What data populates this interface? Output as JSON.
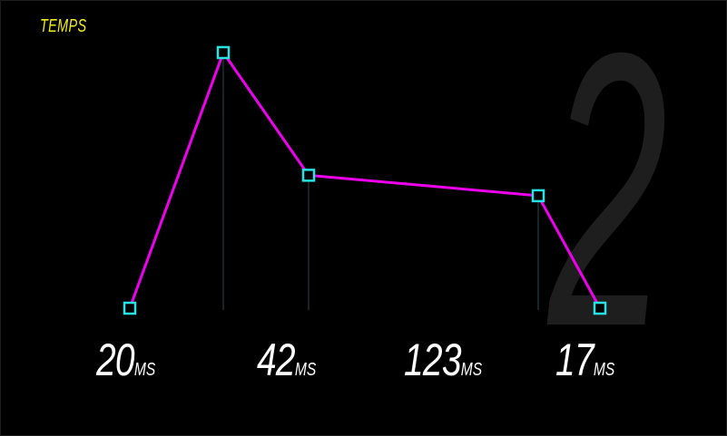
{
  "title": "TEMPS",
  "badge_number": "2",
  "colors": {
    "background": "#000000",
    "title": "#f3ee1b",
    "line": "#ee00ee",
    "marker": "#27e3e3",
    "guide": "#2a4a4a",
    "label": "#ffffff",
    "watermark": "#1e1e1e"
  },
  "chart_data": {
    "type": "line",
    "title": "TEMPS",
    "points": [
      0,
      100,
      52,
      44,
      0
    ],
    "ylim": [
      0,
      100
    ],
    "segment_labels": [
      {
        "value": "20",
        "unit": "MS"
      },
      {
        "value": "42",
        "unit": "MS"
      },
      {
        "value": "123",
        "unit": "MS"
      },
      {
        "value": "17",
        "unit": "MS"
      }
    ],
    "grid": false,
    "legend": false
  }
}
